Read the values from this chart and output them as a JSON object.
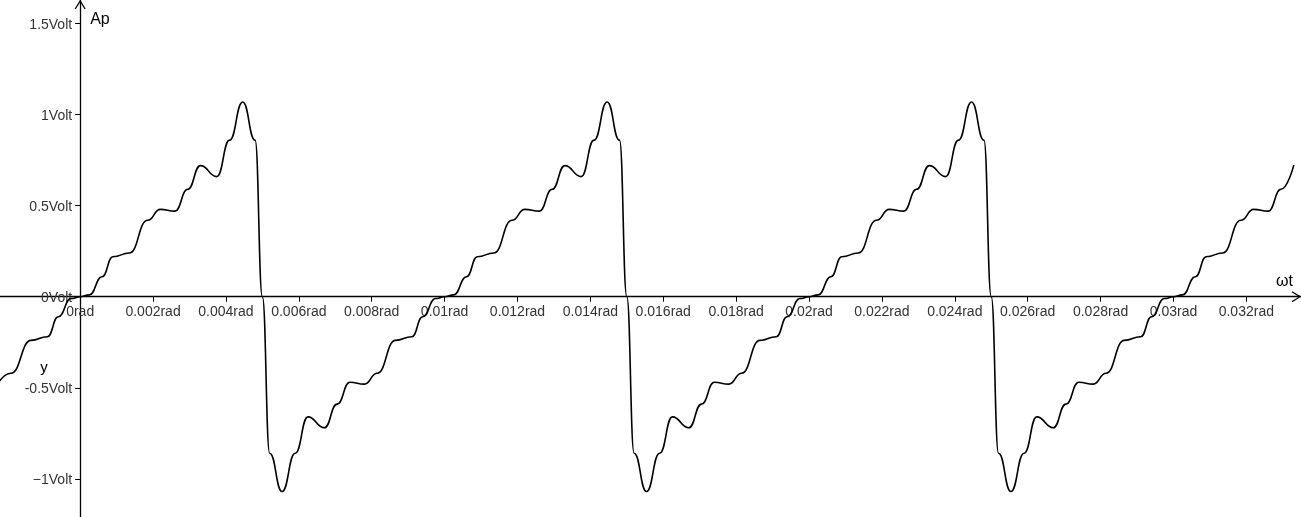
{
  "chart_data": {
    "type": "line",
    "xlabel": "ωt",
    "ylabel": "Ap",
    "annotations": [
      "y"
    ],
    "color": "#000000",
    "marker": "none",
    "xlim": [
      -0.0022,
      0.0335
    ],
    "ylim": [
      -1.21,
      1.63
    ],
    "xticks": [
      {
        "value": 0,
        "label": "0rad"
      },
      {
        "value": 0.002,
        "label": "0.002rad"
      },
      {
        "value": 0.004,
        "label": "0.004rad"
      },
      {
        "value": 0.006,
        "label": "0.006rad"
      },
      {
        "value": 0.008,
        "label": "0.008rad"
      },
      {
        "value": 0.01,
        "label": "0.01rad"
      },
      {
        "value": 0.012,
        "label": "0.012rad"
      },
      {
        "value": 0.014,
        "label": "0.014rad"
      },
      {
        "value": 0.016,
        "label": "0.016rad"
      },
      {
        "value": 0.018,
        "label": "0.018rad"
      },
      {
        "value": 0.02,
        "label": "0.02rad"
      },
      {
        "value": 0.022,
        "label": "0.022rad"
      },
      {
        "value": 0.024,
        "label": "0.024rad"
      },
      {
        "value": 0.026,
        "label": "0.026rad"
      },
      {
        "value": 0.028,
        "label": "0.028rad"
      },
      {
        "value": 0.03,
        "label": "0.03rad"
      },
      {
        "value": 0.032,
        "label": "0.032rad"
      }
    ],
    "yticks": [
      {
        "value": -1,
        "label": "−1Volt"
      },
      {
        "value": -0.5,
        "label": "-0.5Volt"
      },
      {
        "value": 0,
        "label": "0Volt"
      },
      {
        "value": 0.5,
        "label": "0.5Volt"
      },
      {
        "value": 1,
        "label": "1Volt"
      },
      {
        "value": 1.5,
        "label": "1.5Volt"
      }
    ],
    "x": [
      -0.0022,
      -0.0019,
      -0.00135,
      -0.0009,
      -0.0006,
      -0.00025,
      0,
      0.00025,
      0.0006,
      0.0009,
      0.00135,
      0.00185,
      0.0022,
      0.0026,
      0.00295,
      0.0033,
      0.00375,
      0.0041,
      0.00446,
      0.0048,
      0.005,
      0.0052,
      0.00554,
      0.0059,
      0.00625,
      0.0067,
      0.00705,
      0.0074,
      0.0078,
      0.00815,
      0.00865,
      0.0091,
      0.0094,
      0.00975,
      0.01,
      0.01025,
      0.0106,
      0.0109,
      0.01135,
      0.01185,
      0.0122,
      0.0126,
      0.01295,
      0.0133,
      0.01375,
      0.0141,
      0.01446,
      0.0148,
      0.015,
      0.0152,
      0.01554,
      0.0159,
      0.01625,
      0.0167,
      0.01705,
      0.0174,
      0.0178,
      0.01815,
      0.01865,
      0.0191,
      0.0194,
      0.01975,
      0.02,
      0.02025,
      0.0206,
      0.0209,
      0.02135,
      0.02185,
      0.0222,
      0.0226,
      0.02295,
      0.0233,
      0.02375,
      0.0241,
      0.02446,
      0.0248,
      0.025,
      0.0252,
      0.02554,
      0.0259,
      0.02625,
      0.0267,
      0.02705,
      0.0274,
      0.0278,
      0.02815,
      0.02865,
      0.0291,
      0.0294,
      0.02975,
      0.03,
      0.03025,
      0.0306,
      0.0309,
      0.03135,
      0.03185,
      0.0322,
      0.0326,
      0.03295,
      0.0333
    ],
    "values": [
      -0.46,
      -0.42,
      -0.24,
      -0.22,
      -0.11,
      -0.01,
      0,
      0.01,
      0.11,
      0.22,
      0.24,
      0.42,
      0.48,
      0.47,
      0.59,
      0.72,
      0.66,
      0.86,
      1.07,
      0.86,
      0,
      -0.86,
      -1.07,
      -0.86,
      -0.66,
      -0.72,
      -0.59,
      -0.47,
      -0.48,
      -0.42,
      -0.24,
      -0.22,
      -0.11,
      -0.01,
      0,
      0.01,
      0.11,
      0.22,
      0.24,
      0.42,
      0.48,
      0.47,
      0.59,
      0.72,
      0.66,
      0.86,
      1.07,
      0.86,
      0,
      -0.86,
      -1.07,
      -0.86,
      -0.66,
      -0.72,
      -0.59,
      -0.47,
      -0.48,
      -0.42,
      -0.24,
      -0.22,
      -0.11,
      -0.01,
      0,
      0.01,
      0.11,
      0.22,
      0.24,
      0.42,
      0.48,
      0.47,
      0.59,
      0.72,
      0.66,
      0.86,
      1.07,
      0.86,
      0,
      -0.86,
      -1.07,
      -0.86,
      -0.66,
      -0.72,
      -0.59,
      -0.47,
      -0.48,
      -0.42,
      -0.24,
      -0.22,
      -0.11,
      -0.01,
      0,
      0.01,
      0.11,
      0.22,
      0.24,
      0.42,
      0.48,
      0.47,
      0.59,
      0.72
    ]
  }
}
